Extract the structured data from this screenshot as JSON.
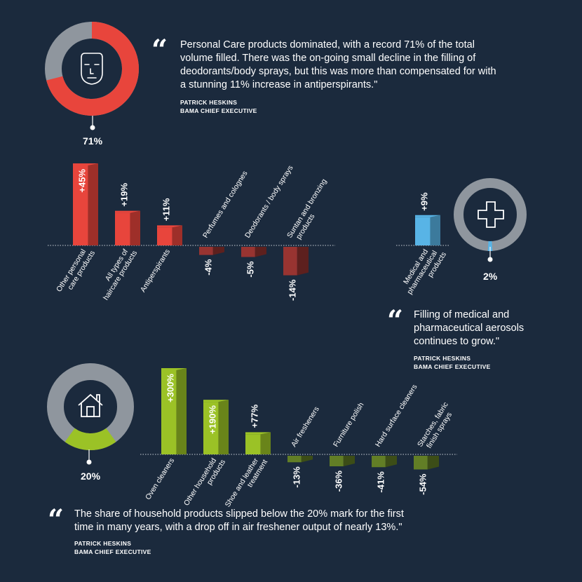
{
  "personal": {
    "quote": "Personal Care products dominated, with a record 71% of the total volume filled. There was the on-going small decline in the filling of deodorants/body sprays, but this was more than compensated for with a stunning 11% increase in antiperspirants.\"",
    "attribution_name": "PATRICK HESKINS",
    "attribution_title": "BAMA CHIEF EXECUTIVE",
    "share_label": "71%",
    "share": 71,
    "icon": "face-icon"
  },
  "medical": {
    "quote": "Filling of medical and pharmaceutical aerosols continues to grow.\"",
    "attribution_name": "PATRICK HESKINS",
    "attribution_title": "BAMA CHIEF EXECUTIVE",
    "share_label": "2%",
    "share": 2,
    "icon": "medical-cross-icon"
  },
  "household": {
    "quote": "The share of household products slipped below the 20% mark for the first time in many years, with a drop off in air freshener output of nearly 13%.\"",
    "attribution_name": "PATRICK HESKINS",
    "attribution_title": "BAMA CHIEF EXECUTIVE",
    "share_label": "20%",
    "share": 20,
    "icon": "house-icon"
  },
  "colors": {
    "background": "#1b2a3d",
    "personal": "#e8453c",
    "personal_dark": "#a93a36",
    "medical": "#58b4e6",
    "household": "#9bc226",
    "household_dark": "#6d8c2a",
    "ring_grey": "#8f969e"
  },
  "chart_data": [
    {
      "type": "bar",
      "group": "personal",
      "categories": [
        "Other personal care products",
        "All types of haircare products",
        "Antiperspirants",
        "Perfumes and colognes",
        "Deodorants / body sprays",
        "Suntan and bronzing products"
      ],
      "label_lines": [
        [
          "Other personal",
          "care products"
        ],
        [
          "All types of",
          "haircare products"
        ],
        [
          "Antiperspirants"
        ],
        [
          "Perfumes and colognes"
        ],
        [
          "Deodorants / body sprays"
        ],
        [
          "Suntan and bronzing",
          "products"
        ]
      ],
      "values": [
        45,
        19,
        11,
        -4,
        -5,
        -14
      ],
      "value_labels": [
        "+45%",
        "+19%",
        "+11%",
        "-4%",
        "-5%",
        "-14%"
      ]
    },
    {
      "type": "bar",
      "group": "medical",
      "categories": [
        "Medical and pharmaceutical products"
      ],
      "label_lines": [
        [
          "Medical and",
          "pharmaceutical",
          "products"
        ]
      ],
      "values": [
        9
      ],
      "value_labels": [
        "+9%"
      ]
    },
    {
      "type": "bar",
      "group": "household",
      "categories": [
        "Oven cleaners",
        "Other household products",
        "Shoe and leather treatment",
        "Air fresheners",
        "Furniture polish",
        "Hard surface cleaners",
        "Starches, fabric finish sprays"
      ],
      "label_lines": [
        [
          "Oven cleaners"
        ],
        [
          "Other household",
          "products"
        ],
        [
          "Shoe and leather",
          "treatment"
        ],
        [
          "Air fresheners"
        ],
        [
          "Furniture polish"
        ],
        [
          "Hard surface cleaners"
        ],
        [
          "Starches, fabric",
          "finish sprays"
        ]
      ],
      "values": [
        300,
        190,
        77,
        -13,
        -36,
        -41,
        -54
      ],
      "value_labels": [
        "+300%",
        "+190%",
        "+77%",
        "-13%",
        "-36%",
        "-41%",
        "-54%"
      ]
    }
  ]
}
